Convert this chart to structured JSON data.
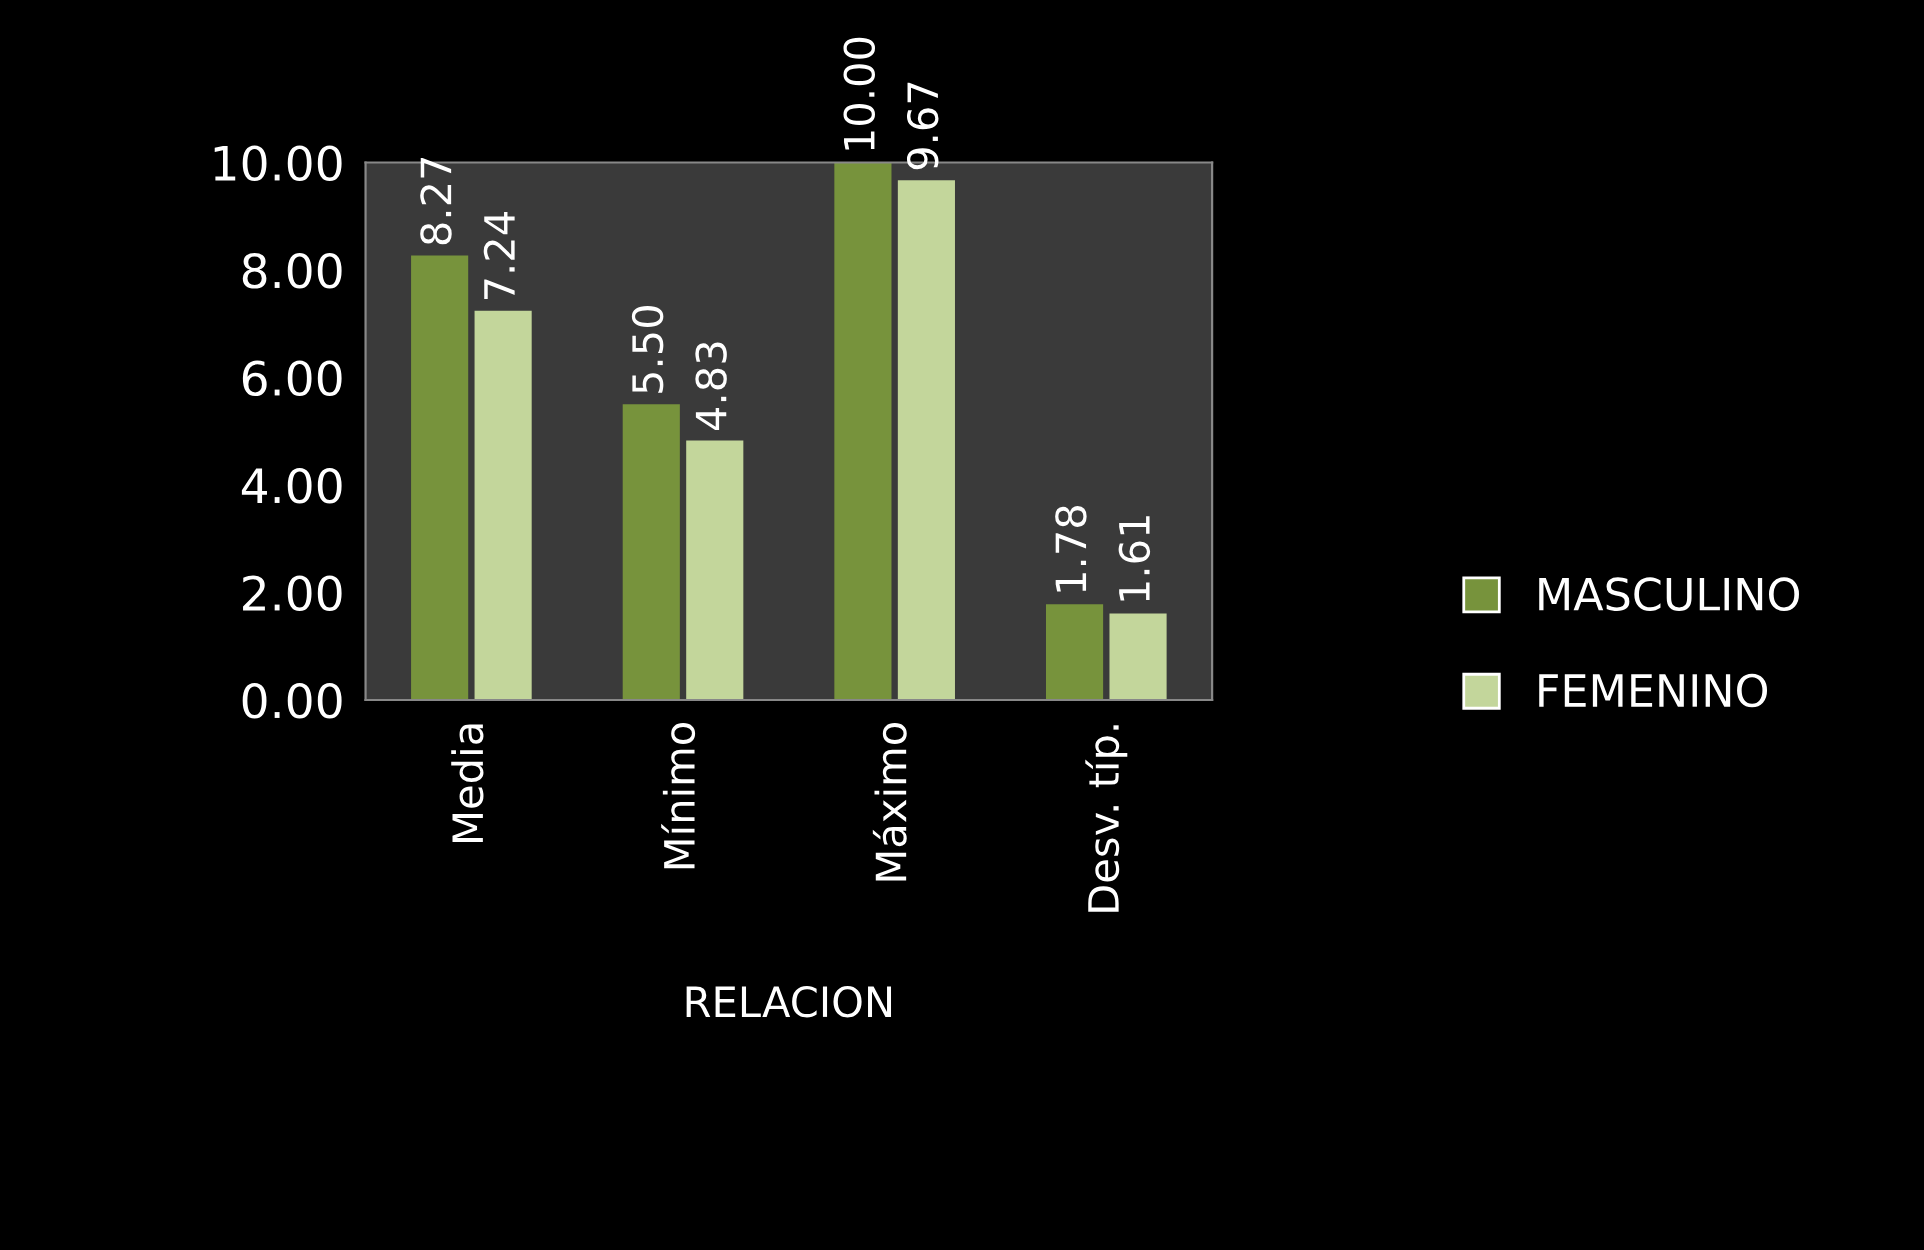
{
  "chart_data": {
    "type": "bar",
    "xlabel": "RELACION",
    "categories": [
      "Media",
      "Mínimo",
      "Máximo",
      "Desv. típ."
    ],
    "series": [
      {
        "name": "MASCULINO",
        "color": "#77933c",
        "values": [
          8.27,
          5.5,
          10.0,
          1.78
        ],
        "value_labels": [
          "8.27",
          "5.50",
          "10.00",
          "1.78"
        ]
      },
      {
        "name": "FEMENINO",
        "color": "#c3d69b",
        "values": [
          7.24,
          4.83,
          9.67,
          1.61
        ],
        "value_labels": [
          "7.24",
          "4.83",
          "9.67",
          "1.61"
        ]
      }
    ],
    "ylim": [
      0,
      10
    ],
    "yticks": [
      {
        "value": 0,
        "label": "0.00"
      },
      {
        "value": 2,
        "label": "2.00"
      },
      {
        "value": 4,
        "label": "4.00"
      },
      {
        "value": 6,
        "label": "6.00"
      },
      {
        "value": 8,
        "label": "8.00"
      },
      {
        "value": 10,
        "label": "10.00"
      }
    ],
    "grid": false,
    "legend": "right"
  }
}
